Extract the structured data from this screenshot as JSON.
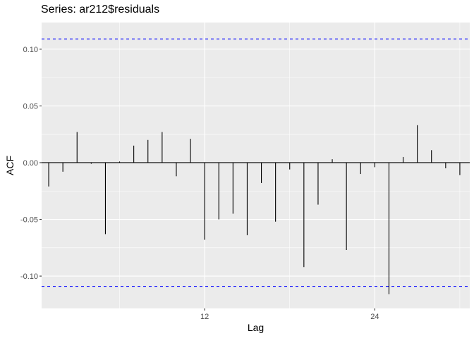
{
  "chart_data": {
    "type": "bar",
    "title": "Series: ar212$residuals",
    "xlabel": "Lag",
    "ylabel": "ACF",
    "xlim": [
      0.5,
      30.7
    ],
    "ylim": [
      -0.1285,
      0.1235
    ],
    "x_ticks": [
      12,
      24
    ],
    "x_tick_labels": [
      "12",
      "24"
    ],
    "y_ticks": [
      -0.1,
      -0.05,
      0.0,
      0.05,
      0.1
    ],
    "y_tick_labels": [
      "-0.10",
      "-0.05",
      "0.00",
      "0.05",
      "0.10"
    ],
    "confidence_bounds": [
      0.109,
      -0.109
    ],
    "grid": true,
    "legend": "none",
    "x": [
      1,
      2,
      3,
      4,
      5,
      6,
      7,
      8,
      9,
      10,
      11,
      12,
      13,
      14,
      15,
      16,
      17,
      18,
      19,
      20,
      21,
      22,
      23,
      24,
      25,
      26,
      27,
      28,
      29,
      30
    ],
    "values": [
      -0.021,
      -0.008,
      0.027,
      -0.001,
      -0.063,
      0.001,
      0.015,
      0.02,
      0.027,
      -0.012,
      0.021,
      -0.068,
      -0.05,
      -0.045,
      -0.064,
      -0.018,
      -0.052,
      -0.006,
      -0.092,
      -0.037,
      0.003,
      -0.077,
      -0.01,
      -0.004,
      -0.116,
      0.005,
      0.033,
      0.011,
      -0.005,
      -0.011
    ],
    "colors": {
      "panel": "#ebebeb",
      "grid_major": "#ffffff",
      "bars": "#000000",
      "zero_line": "#000000",
      "bounds": "#0000ff",
      "tick_text": "#4d4d4d",
      "tick_marks": "#333333"
    }
  }
}
